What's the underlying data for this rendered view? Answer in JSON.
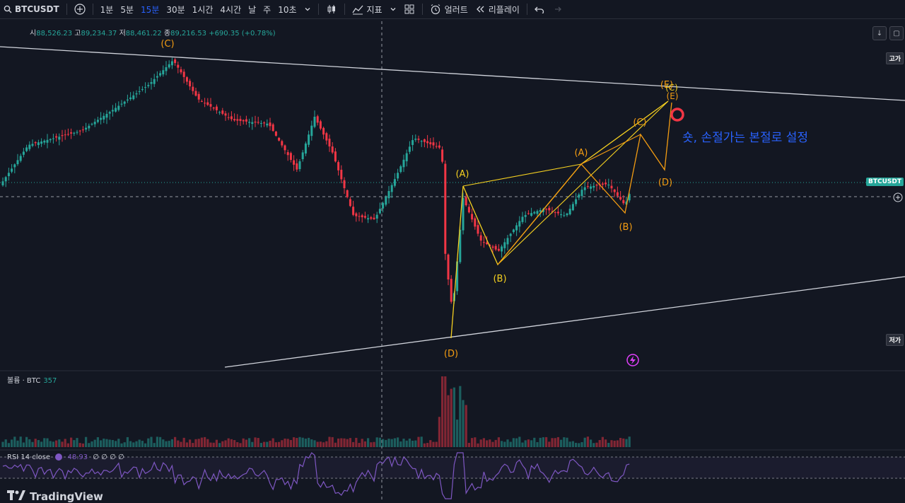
{
  "toolbar": {
    "symbol": "BTCUSDT",
    "intervals": [
      "1분",
      "5분",
      "15분",
      "30분",
      "1시간",
      "4시간",
      "날",
      "주",
      "10초"
    ],
    "active_interval": "15분",
    "indicators_label": "지표",
    "alerts_label": "얼러트",
    "replay_label": "리플레이"
  },
  "legend": {
    "open_label": "시",
    "open": "88,526.23",
    "high_label": "고",
    "high": "89,234.37",
    "low_label": "저",
    "low": "88,461.22",
    "close_label": "종",
    "close": "89,216.53",
    "change": "+690.35 (+0.78%)"
  },
  "price_axis": {
    "high_badge": "고가",
    "low_badge": "저가",
    "symbol_badge": "BTCUSDT"
  },
  "waves": {
    "outer": {
      "A": "(A)",
      "B": "(B)",
      "C": "(C)",
      "D": "(D)"
    },
    "inner": {
      "A": "(A)",
      "B": "(B)",
      "C": "(C)",
      "D": "(D)",
      "E": "(E)"
    }
  },
  "annotation": "숏, 손절가는 본절로 설정",
  "volume_pane": {
    "label": "볼륨 · BTC",
    "value": "357"
  },
  "rsi_pane": {
    "label": "RSI 14 close",
    "value": "48.93",
    "extras": "∅ ∅ ∅ ∅"
  },
  "brand": "TradingView",
  "colors": {
    "up": "#26a69a",
    "down": "#f23645",
    "background": "#131722",
    "wave_yellow": "#f5d020",
    "wave_orange": "#f39c12",
    "accent": "#2962ff",
    "rsi": "#7e57c2"
  }
}
